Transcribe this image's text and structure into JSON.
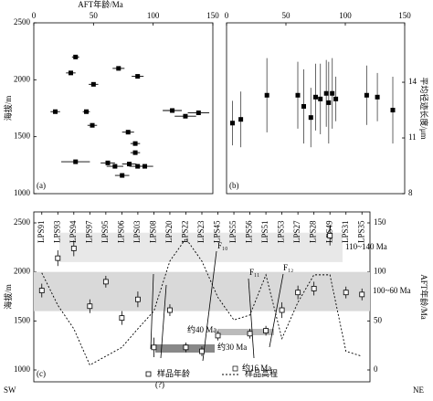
{
  "chart_data": [
    {
      "type": "scatter",
      "panel_label": "(a)",
      "xlabel": "AFT年龄/Ma",
      "ylabel": "海拔/m",
      "xlim": [
        0,
        150
      ],
      "xticks": [
        0,
        50,
        100,
        150
      ],
      "ylim": [
        1000,
        2500
      ],
      "yticks": [
        1000,
        1500,
        2000,
        2500
      ],
      "color": "#000000",
      "x": [
        18,
        35,
        31,
        50,
        44,
        49,
        71,
        87,
        79,
        85,
        85,
        35,
        62,
        68,
        74,
        80,
        87,
        93,
        116,
        127,
        138
      ],
      "y": [
        1720,
        2200,
        2060,
        1960,
        1720,
        1600,
        2100,
        2030,
        1540,
        1440,
        1360,
        1280,
        1270,
        1240,
        1160,
        1260,
        1240,
        1240,
        1730,
        1680,
        1710
      ],
      "xerr": [
        4,
        3,
        4,
        4,
        3,
        4,
        5,
        5,
        5,
        4,
        4,
        12,
        6,
        7,
        6,
        6,
        7,
        7,
        8,
        9,
        9
      ]
    },
    {
      "type": "scatter",
      "panel_label": "(b)",
      "ylabel": "平均径迹长度/μm",
      "xlim": [
        0,
        150
      ],
      "xticks": [
        0,
        50,
        100,
        150
      ],
      "ylim": [
        8,
        17.2
      ],
      "yticks": [
        8,
        11,
        14
      ],
      "color": "#000000",
      "x": [
        5,
        12,
        34,
        60,
        65,
        71,
        75,
        79,
        84,
        86,
        89,
        92,
        118,
        127,
        140
      ],
      "y": [
        11.8,
        12.0,
        13.3,
        13.3,
        12.7,
        12.1,
        13.2,
        13.1,
        13.4,
        12.9,
        13.4,
        13.1,
        13.3,
        13.2,
        12.5
      ],
      "yerr": [
        1.2,
        1.5,
        2.0,
        1.8,
        2.0,
        1.6,
        1.8,
        1.9,
        1.8,
        2.2,
        1.9,
        1.2,
        1.6,
        1.3,
        1.8
      ]
    },
    {
      "type": "line",
      "panel_label": "(c)",
      "ylabel": "海拔/m",
      "y2label": "AFT年龄/Ma",
      "categories": [
        "LPS91",
        "LPS93",
        "LPS94",
        "LPS97",
        "LPS95",
        "LPS06",
        "LPS03",
        "LPS08",
        "LPS20",
        "LPS22",
        "LPS23",
        "LPS45",
        "LPS55",
        "LPS56",
        "LPS51",
        "LPS53",
        "LPS27",
        "LPS28",
        "LPS49",
        "LPS31",
        "LPS35"
      ],
      "ylim": [
        1000,
        2500
      ],
      "yticks": [
        1000,
        1500,
        2000,
        2500
      ],
      "y2lim": [
        0,
        150
      ],
      "y2ticks": [
        0,
        50,
        100,
        150
      ],
      "series": [
        {
          "name": "样品年龄",
          "axis": "y2",
          "color": "#000000",
          "values": [
            81,
            114,
            124,
            65,
            90,
            53,
            72,
            23,
            61,
            23,
            19,
            35,
            null,
            37,
            40,
            61,
            79,
            83,
            137,
            79,
            77
          ],
          "errors": [
            7,
            8,
            8,
            7,
            6,
            7,
            8,
            10,
            6,
            5,
            5,
            5,
            null,
            5,
            5,
            8,
            7,
            7,
            10,
            6,
            6
          ]
        },
        {
          "name": "样品高程",
          "color": "#000000",
          "values": [
            1990,
            1660,
            1420,
            1050,
            1140,
            1230,
            1420,
            1600,
            2110,
            2340,
            2110,
            1740,
            1510,
            1560,
            1970,
            1320,
            1690,
            1970,
            1970,
            1190,
            1140
          ]
        }
      ],
      "bands": [
        {
          "label": "110~140 Ma",
          "from": 110,
          "to": 140
        },
        {
          "label": "100~60 Ma",
          "from": 60,
          "to": 100
        }
      ],
      "annotations": [
        "约40 Ma",
        "约30 Ma",
        "约16 Ma",
        "(?)",
        "F₁₀",
        "F₁₁",
        "F₁₂"
      ],
      "direction": [
        "SW",
        "NE"
      ]
    }
  ]
}
